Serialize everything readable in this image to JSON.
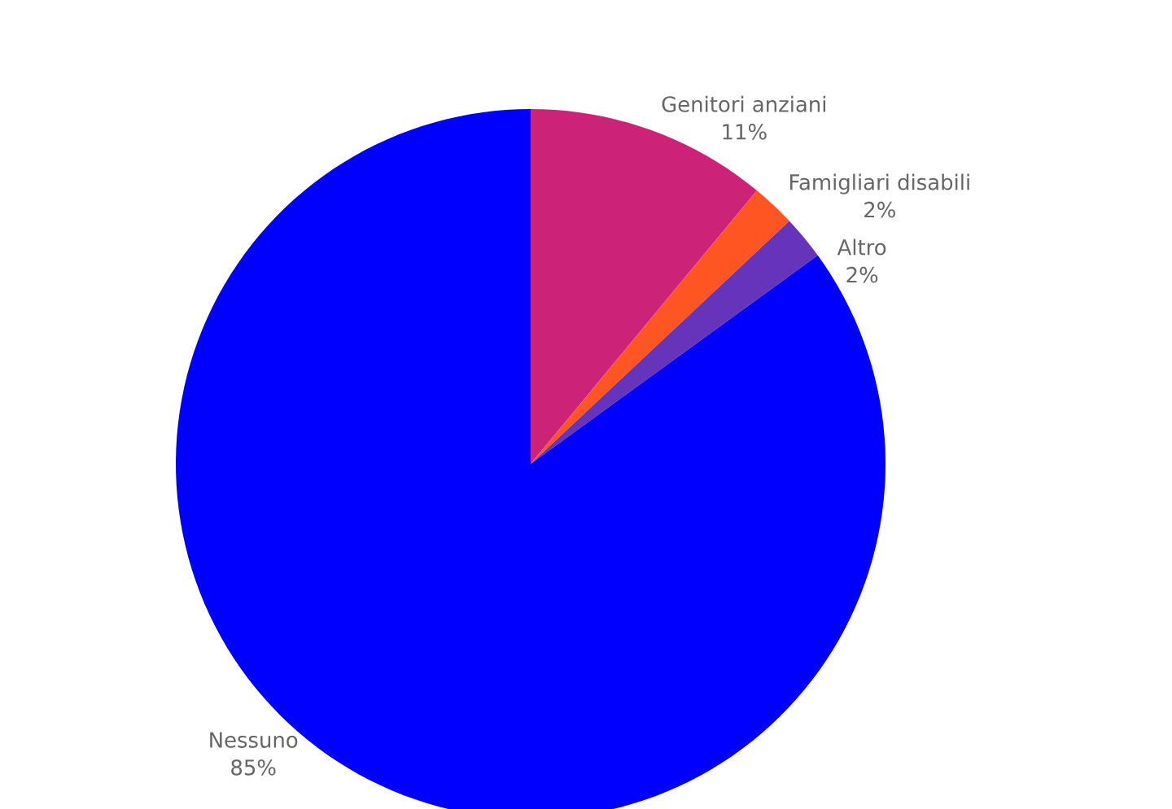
{
  "chart_data": {
    "type": "pie",
    "categories": [
      "Genitori anziani",
      "Famigliari disabili",
      "Altro",
      "Nessuno"
    ],
    "values": [
      11,
      2,
      2,
      85
    ],
    "value_labels": [
      "11%",
      "2%",
      "2%",
      "85%"
    ],
    "colors": [
      "#cc2277",
      "#ff5522",
      "#6633bb",
      "#0000ff"
    ]
  }
}
